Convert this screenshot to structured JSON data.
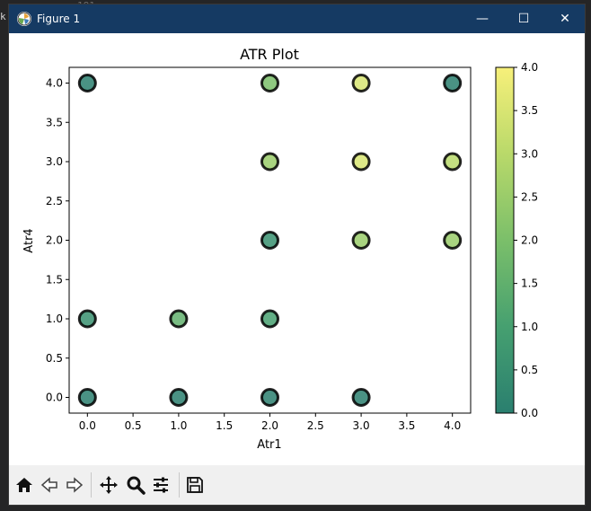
{
  "window": {
    "title": "Figure 1",
    "minimize": "—",
    "maximize": "☐",
    "close": "✕"
  },
  "background": {
    "line_number": "181",
    "fragment": "k."
  },
  "toolbar": {
    "icons": [
      "home-icon",
      "back-icon",
      "forward-icon",
      "pan-icon",
      "zoom-icon",
      "configure-subplots-icon",
      "save-icon"
    ]
  },
  "colors": {
    "titlebar": "#153a63",
    "marker_edge": "#000000",
    "colormap": [
      "#2a7f6f",
      "#46a070",
      "#7bbf6a",
      "#b9d96a",
      "#f7f07a"
    ]
  },
  "chart_data": {
    "type": "scatter",
    "title": "ATR Plot",
    "xlabel": "Atr1",
    "ylabel": "Atr4",
    "xlim": [
      -0.2,
      4.2
    ],
    "ylim": [
      -0.2,
      4.2
    ],
    "xticks": [
      "0.0",
      "0.5",
      "1.0",
      "1.5",
      "2.0",
      "2.5",
      "3.0",
      "3.5",
      "4.0"
    ],
    "yticks": [
      "0.0",
      "0.5",
      "1.0",
      "1.5",
      "2.0",
      "2.5",
      "3.0",
      "3.5",
      "4.0"
    ],
    "xtick_values": [
      0,
      0.5,
      1,
      1.5,
      2,
      2.5,
      3,
      3.5,
      4
    ],
    "ytick_values": [
      0,
      0.5,
      1,
      1.5,
      2,
      2.5,
      3,
      3.5,
      4
    ],
    "grid": false,
    "points": [
      {
        "x": 0,
        "y": 4,
        "c": 0
      },
      {
        "x": 2,
        "y": 4,
        "c": 2
      },
      {
        "x": 3,
        "y": 4,
        "c": 3.5
      },
      {
        "x": 4,
        "y": 4,
        "c": 0
      },
      {
        "x": 2,
        "y": 3,
        "c": 2.5
      },
      {
        "x": 3,
        "y": 3,
        "c": 3.5
      },
      {
        "x": 4,
        "y": 3,
        "c": 3
      },
      {
        "x": 2,
        "y": 2,
        "c": 0.5
      },
      {
        "x": 3,
        "y": 2,
        "c": 2.5
      },
      {
        "x": 4,
        "y": 2,
        "c": 2.5
      },
      {
        "x": 0,
        "y": 1,
        "c": 0.5
      },
      {
        "x": 1,
        "y": 1,
        "c": 1.5
      },
      {
        "x": 2,
        "y": 1,
        "c": 1
      },
      {
        "x": 0,
        "y": 0,
        "c": 0
      },
      {
        "x": 1,
        "y": 0,
        "c": 0
      },
      {
        "x": 2,
        "y": 0,
        "c": 0
      },
      {
        "x": 3,
        "y": 0,
        "c": 0
      }
    ],
    "colorbar": {
      "range": [
        0,
        4
      ],
      "ticks": [
        "0.0",
        "0.5",
        "1.0",
        "1.5",
        "2.0",
        "2.5",
        "3.0",
        "3.5",
        "4.0"
      ],
      "tick_values": [
        0,
        0.5,
        1,
        1.5,
        2,
        2.5,
        3,
        3.5,
        4
      ]
    }
  }
}
